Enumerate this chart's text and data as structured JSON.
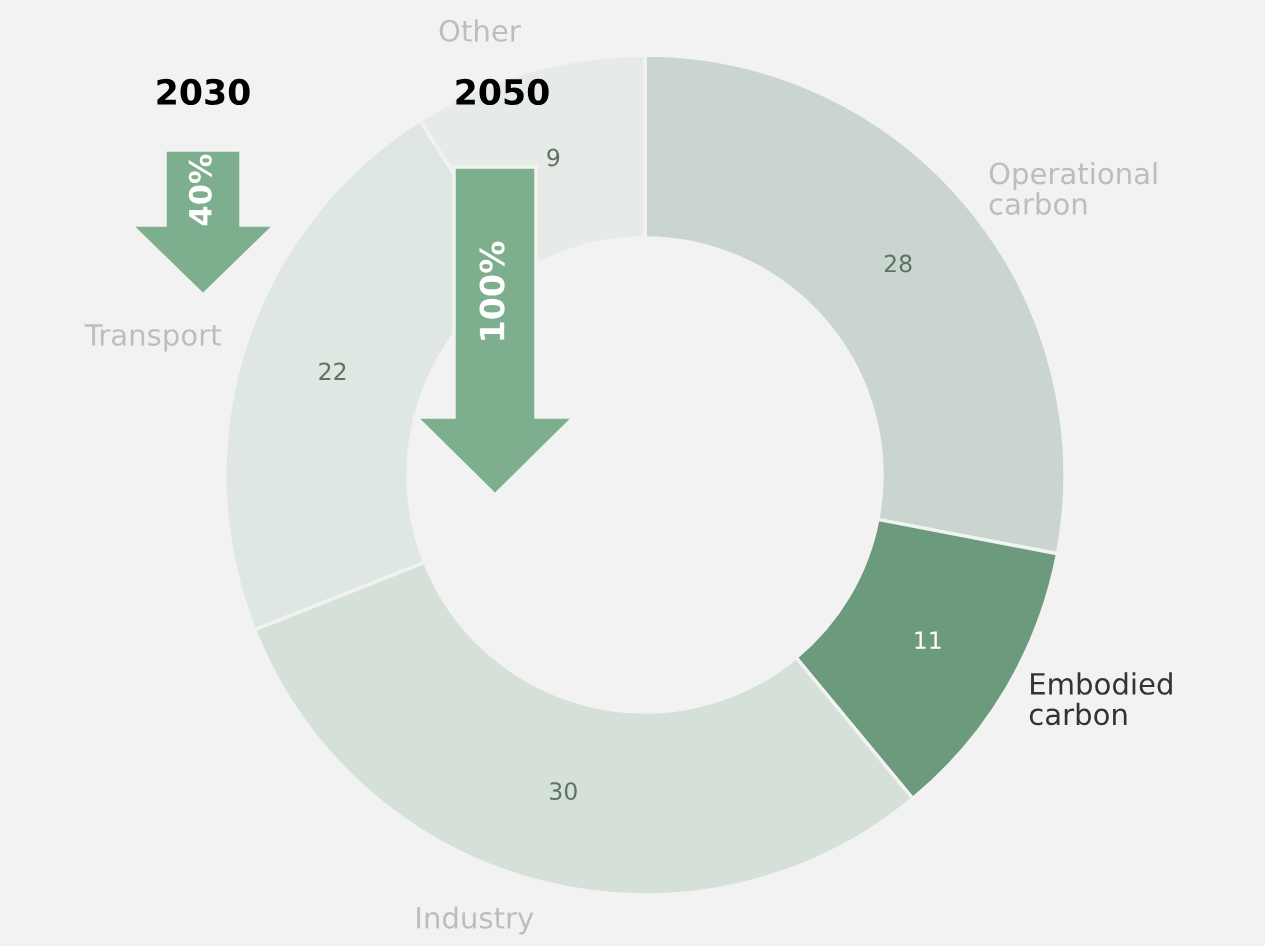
{
  "chart_data": {
    "type": "donut",
    "categories": [
      "Operational carbon",
      "Embodied carbon",
      "Industry",
      "Transport",
      "Other"
    ],
    "values": [
      28,
      11,
      30,
      22,
      9
    ],
    "colors": [
      "#cad5cf",
      "#6b9a7d",
      "#d4e0d8",
      "#dfe7e2",
      "#e6ebe8"
    ],
    "data_labels": true,
    "legend": false,
    "annotations": [
      "2030",
      "40%",
      "2050",
      "100%"
    ]
  }
}
